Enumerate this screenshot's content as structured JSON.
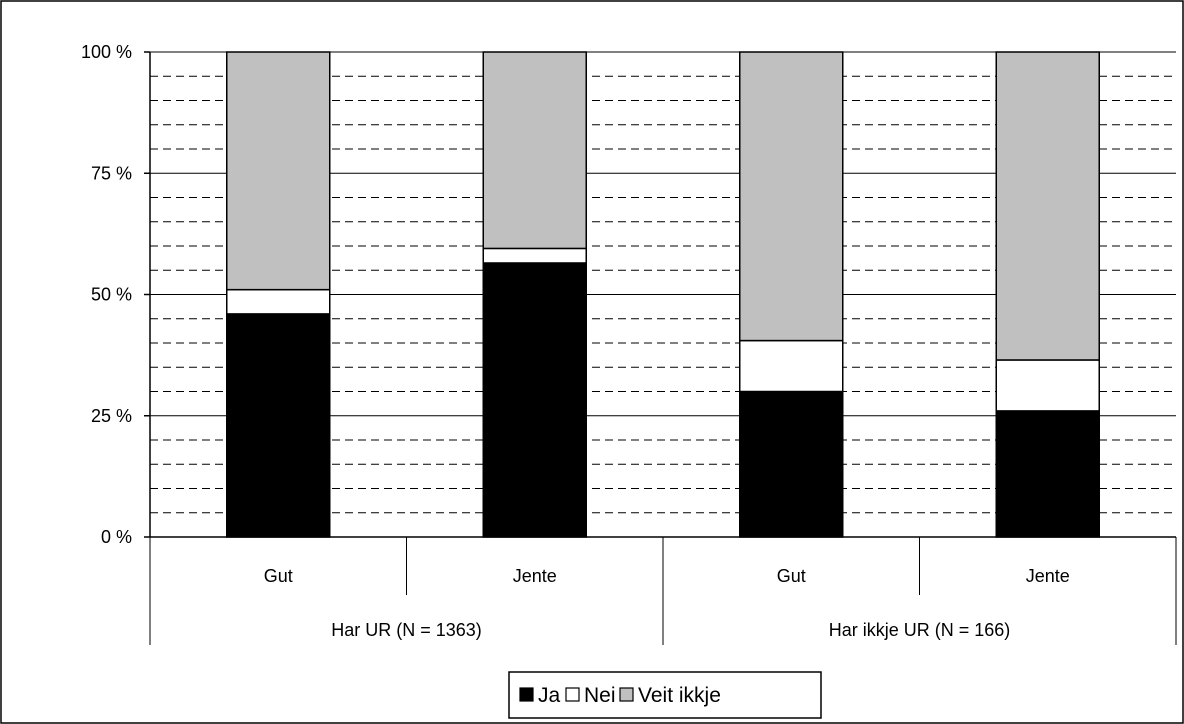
{
  "chart_data": {
    "type": "bar",
    "stacked": true,
    "percent_stacked": true,
    "categories": [
      "Gut",
      "Jente",
      "Gut",
      "Jente"
    ],
    "groups": [
      {
        "label": "Har UR (N = 1363)",
        "categories": [
          "Gut",
          "Jente"
        ]
      },
      {
        "label": "Har ikkje UR (N = 166)",
        "categories": [
          "Gut",
          "Jente"
        ]
      }
    ],
    "series": [
      {
        "name": "Ja",
        "values": [
          46,
          56.5,
          30,
          26
        ],
        "color": "#000000"
      },
      {
        "name": "Nei",
        "values": [
          5,
          3,
          10.5,
          10.5
        ],
        "color": "#ffffff"
      },
      {
        "name": "Veit ikkje",
        "values": [
          49,
          40.5,
          59.5,
          63.5
        ],
        "color": "#c0c0c0"
      }
    ],
    "yticks": [
      "0 %",
      "25 %",
      "50 %",
      "75 %",
      "100 %"
    ],
    "ylim": [
      0,
      100
    ],
    "grid": {
      "major": true,
      "minor": true,
      "minor_style": "dashed"
    },
    "legend": {
      "position": "bottom",
      "entries": [
        "Ja",
        "Nei",
        "Veit ikkje"
      ]
    },
    "title": "",
    "xlabel": "",
    "ylabel": ""
  }
}
